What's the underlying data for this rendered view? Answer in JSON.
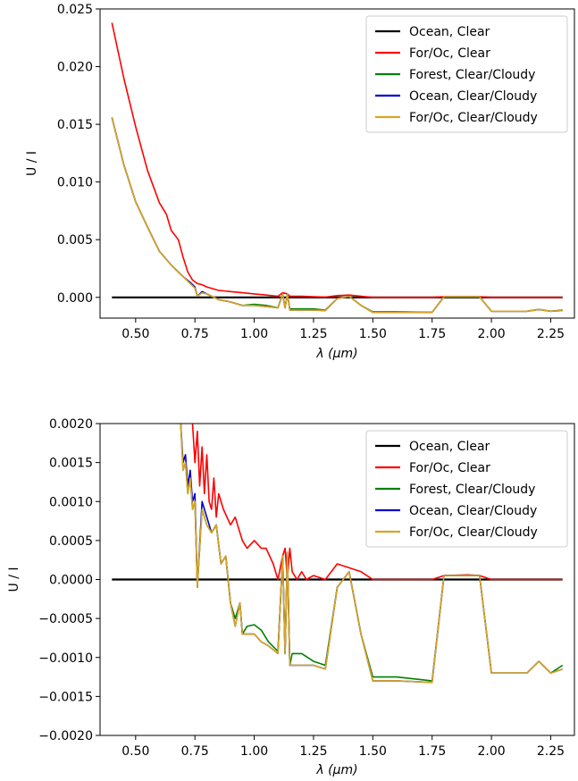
{
  "chart_data": [
    {
      "type": "line",
      "xlabel": "λ (μm)",
      "ylabel": "U / I",
      "xlim": [
        0.35,
        2.35
      ],
      "ylim": [
        -0.0018,
        0.025
      ],
      "xticks": [
        0.5,
        0.75,
        1.0,
        1.25,
        1.5,
        1.75,
        2.0,
        2.25
      ],
      "xtick_labels": [
        "0.50",
        "0.75",
        "1.00",
        "1.25",
        "1.50",
        "1.75",
        "2.00",
        "2.25"
      ],
      "yticks": [
        0.0,
        0.005,
        0.01,
        0.015,
        0.02,
        0.025
      ],
      "ytick_labels": [
        "0.000",
        "0.005",
        "0.010",
        "0.015",
        "0.020",
        "0.025"
      ],
      "legend_position": "top-right",
      "grid": false,
      "series": [
        {
          "name": "Ocean, Clear",
          "color": "#000000",
          "x": [
            0.4,
            2.3
          ],
          "y": [
            0.0,
            0.0
          ]
        },
        {
          "name": "For/Oc, Clear",
          "color": "#ff0000",
          "x": [
            0.4,
            0.45,
            0.5,
            0.55,
            0.6,
            0.63,
            0.65,
            0.68,
            0.7,
            0.72,
            0.74,
            0.76,
            0.78,
            0.8,
            0.85,
            0.9,
            0.95,
            1.0,
            1.05,
            1.1,
            1.12,
            1.13,
            1.14,
            1.15,
            1.2,
            1.25,
            1.3,
            1.35,
            1.4,
            1.45,
            1.5,
            1.6,
            1.75,
            1.8,
            1.9,
            1.95,
            2.0,
            2.1,
            2.2,
            2.3
          ],
          "y": [
            0.0238,
            0.019,
            0.0148,
            0.011,
            0.0082,
            0.0072,
            0.0058,
            0.005,
            0.0035,
            0.0022,
            0.0015,
            0.0012,
            0.0011,
            0.0009,
            0.0006,
            0.0005,
            0.0004,
            0.0003,
            0.0002,
            0.0001,
            0.0004,
            0.00035,
            0.0003,
            0.0001,
            0.0001,
            5e-05,
            2e-05,
            0.00015,
            0.0002,
            0.0001,
            0.0,
            0.0,
            0.0,
            5e-05,
            6e-05,
            5e-05,
            0.0,
            0.0,
            0.0,
            0.0
          ]
        },
        {
          "name": "Forest, Clear/Cloudy",
          "color": "#008000",
          "x": [
            0.4,
            0.45,
            0.5,
            0.55,
            0.6,
            0.65,
            0.7,
            0.73,
            0.75,
            0.76,
            0.78,
            0.8,
            0.85,
            0.9,
            0.95,
            1.0,
            1.05,
            1.1,
            1.12,
            1.13,
            1.14,
            1.15,
            1.2,
            1.25,
            1.3,
            1.35,
            1.4,
            1.45,
            1.5,
            1.6,
            1.75,
            1.8,
            1.9,
            1.95,
            2.0,
            2.1,
            2.15,
            2.2,
            2.25,
            2.3
          ],
          "y": [
            0.0156,
            0.0115,
            0.0083,
            0.0061,
            0.004,
            0.0028,
            0.0018,
            0.0012,
            0.0008,
            0.0001,
            0.0004,
            0.0003,
            -0.0002,
            -0.0004,
            -0.0007,
            -0.0006,
            -0.0007,
            -0.0009,
            0.0003,
            -0.0009,
            0.0003,
            -0.001,
            -0.001,
            -0.001,
            -0.0011,
            -0.0001,
            0.0001,
            -0.0007,
            -0.00125,
            -0.00125,
            -0.0013,
            5e-05,
            5e-05,
            5e-05,
            -0.0012,
            -0.0012,
            -0.0012,
            -0.00105,
            -0.0012,
            -0.0011
          ]
        },
        {
          "name": "Ocean, Clear/Cloudy",
          "color": "#0000cd",
          "x": [
            0.4,
            0.45,
            0.5,
            0.55,
            0.6,
            0.65,
            0.7,
            0.73,
            0.75,
            0.76,
            0.78,
            0.8,
            0.85,
            0.9,
            0.95,
            1.0,
            1.05,
            1.1,
            1.12,
            1.13,
            1.14,
            1.15,
            1.2,
            1.25,
            1.3,
            1.35,
            1.4,
            1.45,
            1.5,
            1.6,
            1.75,
            1.8,
            1.9,
            1.95,
            2.0,
            2.1,
            2.15,
            2.2,
            2.25,
            2.3
          ],
          "y": [
            0.0156,
            0.0115,
            0.0083,
            0.0061,
            0.004,
            0.0028,
            0.0018,
            0.0013,
            0.0009,
            0.0001,
            0.0005,
            0.0003,
            -0.0002,
            -0.0004,
            -0.0007,
            -0.0007,
            -0.0008,
            -0.0009,
            0.0003,
            -0.0009,
            0.0003,
            -0.0011,
            -0.0011,
            -0.0011,
            -0.00115,
            -0.0001,
            0.0001,
            -0.0007,
            -0.0013,
            -0.0013,
            -0.0013,
            5e-05,
            5e-05,
            5e-05,
            -0.0012,
            -0.0012,
            -0.0012,
            -0.00105,
            -0.0012,
            -0.00115
          ]
        },
        {
          "name": "For/Oc, Clear/Cloudy",
          "color": "#daa520",
          "x": [
            0.4,
            0.45,
            0.5,
            0.55,
            0.6,
            0.65,
            0.7,
            0.73,
            0.75,
            0.76,
            0.78,
            0.8,
            0.85,
            0.9,
            0.95,
            1.0,
            1.05,
            1.1,
            1.12,
            1.13,
            1.14,
            1.15,
            1.2,
            1.25,
            1.3,
            1.35,
            1.4,
            1.45,
            1.5,
            1.6,
            1.75,
            1.8,
            1.9,
            1.95,
            2.0,
            2.1,
            2.15,
            2.2,
            2.25,
            2.3
          ],
          "y": [
            0.0156,
            0.0115,
            0.0083,
            0.0061,
            0.004,
            0.0028,
            0.0018,
            0.0012,
            0.0008,
            0.0001,
            0.0004,
            0.0003,
            -0.0002,
            -0.0004,
            -0.0007,
            -0.0007,
            -0.0008,
            -0.0009,
            0.0003,
            -0.0009,
            0.0003,
            -0.0011,
            -0.0011,
            -0.0011,
            -0.00115,
            -0.0001,
            0.0001,
            -0.0007,
            -0.0013,
            -0.0013,
            -0.0013,
            5e-05,
            5e-05,
            5e-05,
            -0.0012,
            -0.0012,
            -0.0012,
            -0.00105,
            -0.0012,
            -0.00115
          ]
        }
      ]
    },
    {
      "type": "line",
      "xlabel": "λ (μm)",
      "ylabel": "U / I",
      "xlim": [
        0.35,
        2.35
      ],
      "ylim": [
        -0.002,
        0.002
      ],
      "xticks": [
        0.5,
        0.75,
        1.0,
        1.25,
        1.5,
        1.75,
        2.0,
        2.25
      ],
      "xtick_labels": [
        "0.50",
        "0.75",
        "1.00",
        "1.25",
        "1.50",
        "1.75",
        "2.00",
        "2.25"
      ],
      "yticks": [
        -0.002,
        -0.0015,
        -0.001,
        -0.0005,
        0.0,
        0.0005,
        0.001,
        0.0015,
        0.002
      ],
      "ytick_labels": [
        "−0.0020",
        "−0.0015",
        "−0.0010",
        "−0.0005",
        "0.0000",
        "0.0005",
        "0.0010",
        "0.0015",
        "0.0020"
      ],
      "legend_position": "top-right",
      "grid": false,
      "series": [
        {
          "name": "Ocean, Clear",
          "color": "#000000",
          "x": [
            0.4,
            2.3
          ],
          "y": [
            0.0,
            0.0
          ]
        },
        {
          "name": "For/Oc, Clear",
          "color": "#ff0000",
          "x": [
            0.74,
            0.75,
            0.76,
            0.77,
            0.78,
            0.79,
            0.8,
            0.81,
            0.82,
            0.83,
            0.84,
            0.85,
            0.87,
            0.9,
            0.92,
            0.94,
            0.95,
            0.97,
            1.0,
            1.03,
            1.05,
            1.08,
            1.1,
            1.12,
            1.13,
            1.14,
            1.15,
            1.16,
            1.18,
            1.2,
            1.22,
            1.25,
            1.3,
            1.35,
            1.4,
            1.45,
            1.5,
            1.6,
            1.75,
            1.8,
            1.9,
            1.95,
            2.0,
            2.1,
            2.2,
            2.3
          ],
          "y": [
            0.002,
            0.0015,
            0.0019,
            0.0012,
            0.0017,
            0.0011,
            0.0016,
            0.001,
            0.0009,
            0.0013,
            0.0008,
            0.0011,
            0.0009,
            0.0007,
            0.0008,
            0.0006,
            0.0005,
            0.0004,
            0.0005,
            0.0004,
            0.0004,
            0.0002,
            0.0,
            0.0003,
            0.0004,
            0.0,
            0.0004,
            0.0001,
            0.0,
            0.0001,
            0.0,
            5e-05,
            0.0,
            0.0002,
            0.00015,
            0.0001,
            0.0,
            0.0,
            0.0,
            5e-05,
            6e-05,
            5e-05,
            0.0,
            0.0,
            0.0,
            0.0
          ]
        },
        {
          "name": "Forest, Clear/Cloudy",
          "color": "#008000",
          "x": [
            0.69,
            0.7,
            0.71,
            0.72,
            0.73,
            0.74,
            0.75,
            0.76,
            0.78,
            0.8,
            0.82,
            0.84,
            0.86,
            0.88,
            0.9,
            0.92,
            0.94,
            0.95,
            0.97,
            1.0,
            1.03,
            1.06,
            1.1,
            1.12,
            1.13,
            1.14,
            1.15,
            1.16,
            1.2,
            1.25,
            1.3,
            1.35,
            1.4,
            1.45,
            1.5,
            1.6,
            1.75,
            1.8,
            1.9,
            1.95,
            2.0,
            2.1,
            2.15,
            2.2,
            2.25,
            2.3
          ],
          "y": [
            0.002,
            0.0014,
            0.0015,
            0.0011,
            0.0013,
            0.0009,
            0.001,
            -0.0001,
            0.0009,
            0.0007,
            0.0006,
            0.0007,
            0.0002,
            0.0003,
            -0.0003,
            -0.0005,
            -0.0003,
            -0.0007,
            -0.0006,
            -0.00058,
            -0.00065,
            -0.0008,
            -0.00092,
            0.0003,
            -0.00095,
            0.00035,
            -0.0011,
            -0.00095,
            -0.00095,
            -0.00105,
            -0.0011,
            -0.0001,
            0.0001,
            -0.0007,
            -0.00125,
            -0.00125,
            -0.0013,
            5e-05,
            5e-05,
            5e-05,
            -0.0012,
            -0.0012,
            -0.0012,
            -0.00105,
            -0.0012,
            -0.0011
          ]
        },
        {
          "name": "Ocean, Clear/Cloudy",
          "color": "#0000cd",
          "x": [
            0.69,
            0.7,
            0.71,
            0.72,
            0.73,
            0.74,
            0.75,
            0.76,
            0.78,
            0.8,
            0.82,
            0.84,
            0.86,
            0.88,
            0.9,
            0.92,
            0.94,
            0.95,
            0.97,
            1.0,
            1.03,
            1.06,
            1.1,
            1.12,
            1.13,
            1.14,
            1.15,
            1.16,
            1.2,
            1.25,
            1.3,
            1.35,
            1.4,
            1.45,
            1.5,
            1.6,
            1.75,
            1.8,
            1.9,
            1.95,
            2.0,
            2.1,
            2.15,
            2.2,
            2.25,
            2.3
          ],
          "y": [
            0.002,
            0.0015,
            0.0016,
            0.0012,
            0.0014,
            0.001,
            0.0011,
            -0.0001,
            0.001,
            0.0008,
            0.0006,
            0.0007,
            0.0002,
            0.0003,
            -0.0003,
            -0.0006,
            -0.0003,
            -0.0007,
            -0.0007,
            -0.0007,
            -0.0008,
            -0.00085,
            -0.00095,
            0.0003,
            -0.00095,
            0.00035,
            -0.0011,
            -0.0011,
            -0.0011,
            -0.0011,
            -0.00115,
            -0.0001,
            0.0001,
            -0.0007,
            -0.0013,
            -0.0013,
            -0.00132,
            5e-05,
            5e-05,
            5e-05,
            -0.0012,
            -0.0012,
            -0.0012,
            -0.00105,
            -0.0012,
            -0.00115
          ]
        },
        {
          "name": "For/Oc, Clear/Cloudy",
          "color": "#daa520",
          "x": [
            0.69,
            0.7,
            0.71,
            0.72,
            0.73,
            0.74,
            0.75,
            0.76,
            0.78,
            0.8,
            0.82,
            0.84,
            0.86,
            0.88,
            0.9,
            0.92,
            0.94,
            0.95,
            0.97,
            1.0,
            1.03,
            1.06,
            1.1,
            1.12,
            1.13,
            1.14,
            1.15,
            1.16,
            1.2,
            1.25,
            1.3,
            1.35,
            1.4,
            1.45,
            1.5,
            1.6,
            1.75,
            1.8,
            1.9,
            1.95,
            2.0,
            2.1,
            2.15,
            2.2,
            2.25,
            2.3
          ],
          "y": [
            0.002,
            0.0014,
            0.0015,
            0.0011,
            0.0013,
            0.0009,
            0.001,
            -0.0001,
            0.0009,
            0.0007,
            0.0006,
            0.0007,
            0.0002,
            0.0003,
            -0.0003,
            -0.0006,
            -0.0003,
            -0.0007,
            -0.0007,
            -0.0007,
            -0.0008,
            -0.00085,
            -0.00095,
            0.0003,
            -0.00095,
            0.00035,
            -0.0011,
            -0.0011,
            -0.0011,
            -0.0011,
            -0.00115,
            -0.0001,
            0.0001,
            -0.0007,
            -0.0013,
            -0.0013,
            -0.00132,
            5e-05,
            5e-05,
            5e-05,
            -0.0012,
            -0.0012,
            -0.0012,
            -0.00105,
            -0.0012,
            -0.00115
          ]
        }
      ]
    }
  ]
}
